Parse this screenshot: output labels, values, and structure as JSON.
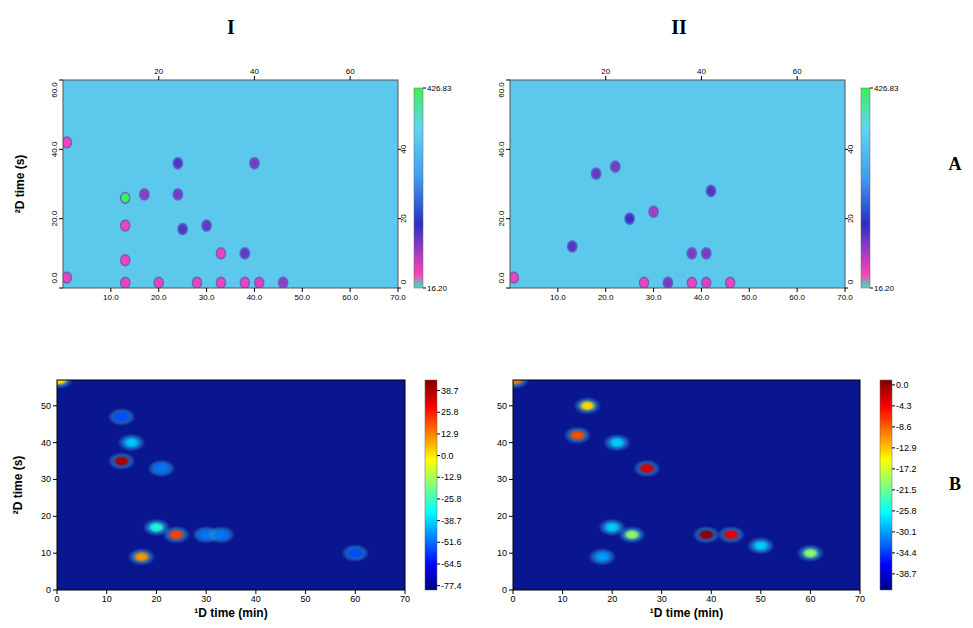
{
  "columns": [
    "I",
    "II"
  ],
  "rows": [
    "A",
    "B"
  ],
  "chart_data": [
    {
      "type": "heatmap",
      "ylabel": "²D time (s)",
      "xlim": [
        0,
        70
      ],
      "xticks": [
        {
          "value": 10,
          "label": "10.0"
        },
        {
          "value": 20,
          "label": "20.0"
        },
        {
          "value": 30,
          "label": "30.0"
        },
        {
          "value": 40,
          "label": "40.0"
        },
        {
          "value": 50,
          "label": "50.0"
        },
        {
          "value": 60,
          "label": "60.0"
        },
        {
          "value": 70,
          "label": "70.0"
        }
      ],
      "x2lim": [
        0,
        70
      ],
      "x2ticks": [
        20,
        40,
        60
      ],
      "ylim": [
        0,
        60
      ],
      "yticks": [
        {
          "value": 0,
          "label": "0.0"
        },
        {
          "value": 20,
          "label": "20.0"
        },
        {
          "value": 40,
          "label": "40.0"
        },
        {
          "value": 60,
          "label": "60.0"
        }
      ],
      "y2lim": [
        0,
        60
      ],
      "y2ticks": [
        0,
        20,
        40
      ],
      "peaks": {
        "x": [
          0.8,
          0.8,
          13,
          13,
          13,
          13,
          17,
          20,
          24,
          25,
          28,
          30,
          33,
          33,
          38,
          38,
          41,
          46,
          40,
          24
        ],
        "y": [
          3,
          42,
          26,
          18,
          8,
          1.5,
          27,
          1.5,
          27,
          17,
          1.5,
          18,
          1.5,
          10,
          1.5,
          10,
          1.5,
          1.5,
          36,
          36
        ],
        "values": [
          50,
          50,
          426,
          50,
          50,
          50,
          100,
          50,
          110,
          130,
          50,
          120,
          50,
          50,
          50,
          120,
          60,
          100,
          110,
          130
        ]
      },
      "colorbar": {
        "range": [
          16.2,
          426.83
        ],
        "ticks": [
          {
            "value": 16.2,
            "label": "16.20"
          },
          426.83
        ]
      }
    },
    {
      "type": "heatmap",
      "xlim": [
        0,
        70
      ],
      "xticks": [
        {
          "value": 10,
          "label": "10.0"
        },
        {
          "value": 20,
          "label": "20.0"
        },
        {
          "value": 30,
          "label": "30.0"
        },
        {
          "value": 40,
          "label": "40.0"
        },
        {
          "value": 50,
          "label": "50.0"
        },
        {
          "value": 60,
          "label": "60.0"
        },
        {
          "value": 70,
          "label": "70.0"
        }
      ],
      "x2lim": [
        0,
        70
      ],
      "x2ticks": [
        20,
        40,
        60
      ],
      "ylim": [
        0,
        60
      ],
      "yticks": [
        {
          "value": 0,
          "label": "0.0"
        },
        {
          "value": 20,
          "label": "20.0"
        },
        {
          "value": 40,
          "label": "40.0"
        },
        {
          "value": 60,
          "label": "60.0"
        }
      ],
      "y2lim": [
        0,
        60
      ],
      "y2ticks": [
        0,
        20,
        40
      ],
      "peaks": {
        "x": [
          0.8,
          13,
          18,
          22,
          30,
          28,
          33,
          38,
          38,
          41,
          41,
          46,
          42,
          25
        ],
        "y": [
          3,
          12,
          33,
          35,
          22,
          1.5,
          1.5,
          1.5,
          10,
          1.5,
          10,
          1.5,
          28,
          20
        ],
        "values": [
          50,
          130,
          120,
          110,
          90,
          50,
          110,
          50,
          110,
          60,
          110,
          50,
          130,
          140
        ]
      },
      "colorbar": {
        "range": [
          16.2,
          426.83
        ],
        "ticks": [
          {
            "value": 16.2,
            "label": "16.20"
          },
          426.83
        ]
      }
    },
    {
      "type": "heatmap",
      "xlabel": "¹D time (min)",
      "ylabel": "²D time (s)",
      "xlim": [
        0,
        70
      ],
      "xticks": [
        0,
        10,
        20,
        30,
        40,
        50,
        60,
        70
      ],
      "ylim": [
        0,
        57
      ],
      "yticks": [
        0,
        10,
        20,
        30,
        40,
        50
      ],
      "peaks": {
        "x": [
          13,
          17,
          24,
          20,
          15,
          13,
          21,
          30,
          33,
          60,
          0.5
        ],
        "y": [
          35,
          9,
          15,
          17,
          40,
          47,
          33,
          15,
          15,
          10,
          57
        ],
        "values": [
          38.7,
          10,
          20,
          -30,
          -40,
          -55,
          -50,
          -50,
          -50,
          -55,
          0
        ]
      },
      "colorbar": {
        "range": [
          -80,
          45
        ],
        "ticks": [
          38.7,
          25.8,
          12.9,
          {
            "value": 0,
            "label": "0.0"
          },
          -12.9,
          -25.8,
          -38.7,
          -51.6,
          -64.5,
          -77.4
        ]
      }
    },
    {
      "type": "heatmap",
      "xlabel": "¹D time (min)",
      "xlim": [
        0,
        70
      ],
      "xticks": [
        0,
        10,
        20,
        30,
        40,
        50,
        60,
        70
      ],
      "ylim": [
        0,
        57
      ],
      "yticks": [
        0,
        10,
        20,
        30,
        40,
        50
      ],
      "peaks": {
        "x": [
          39,
          44,
          27,
          15,
          13,
          24,
          60,
          50,
          21,
          20,
          18,
          0.5
        ],
        "y": [
          15,
          15,
          33,
          50,
          42,
          15,
          10,
          12,
          40,
          17,
          9,
          57
        ],
        "values": [
          0,
          -4,
          -3,
          -14,
          -8,
          -20,
          -20,
          -28,
          -28,
          -28,
          -30,
          -10
        ]
      },
      "colorbar": {
        "range": [
          -42,
          1
        ],
        "ticks": [
          {
            "value": 0,
            "label": "0.0"
          },
          -4.3,
          -8.6,
          -12.9,
          -17.2,
          -21.5,
          -25.8,
          -30.1,
          -34.4,
          -38.7
        ]
      }
    }
  ]
}
